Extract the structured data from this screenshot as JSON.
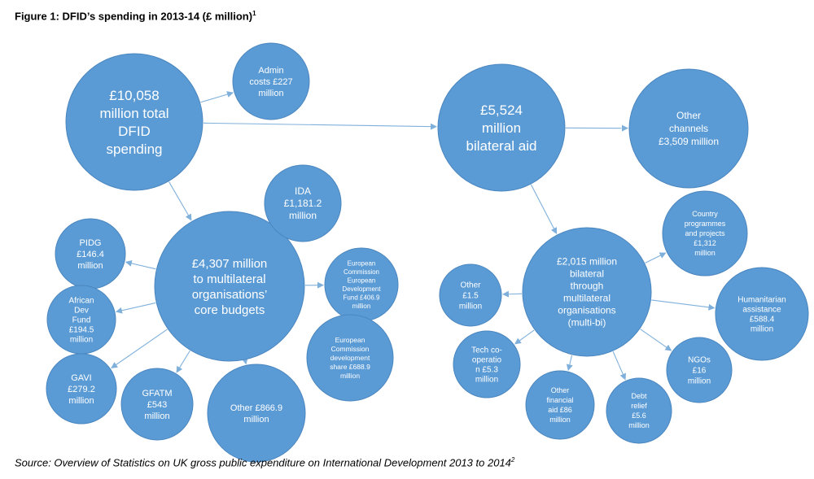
{
  "figure": {
    "title": "Figure 1: DFID’s spending in 2013-14 (£ million)",
    "title_sup": "1",
    "source": "Source: Overview of Statistics on UK gross public expenditure on International Development 2013 to 2014",
    "source_sup": "2",
    "bubble_color": "#5b9bd5",
    "arrow_color": "#7fb0db"
  },
  "nodes": {
    "total": [
      "£10,058",
      "million total",
      "DFID",
      "spending"
    ],
    "admin": [
      "Admin",
      "costs £227",
      "million"
    ],
    "bilateral": [
      "£5,524",
      "million",
      "bilateral aid"
    ],
    "other_channels": [
      "Other",
      "channels",
      "£3,509 million"
    ],
    "multilateral": [
      "£4,307 million",
      "to multilateral",
      "organisations’",
      "core budgets"
    ],
    "ida": [
      "IDA",
      "£1,181.2",
      "million"
    ],
    "pidg": [
      "PIDG",
      "£146.4",
      "million"
    ],
    "afdf": [
      "African",
      "Dev",
      "Fund",
      "£194.5",
      "million"
    ],
    "gavi": [
      "GAVI",
      "£279.2",
      "million"
    ],
    "gfatm": [
      "GFATM",
      "£543",
      "million"
    ],
    "other_multi": [
      "Other £866.9",
      "million"
    ],
    "edf": [
      "European",
      "Commission",
      "European",
      "Development",
      "Fund £406.9",
      "million"
    ],
    "ec_dev": [
      "European",
      "Commission",
      "development",
      "share £688.9",
      "million"
    ],
    "multibi": [
      "£2,015 million",
      "bilateral",
      "through",
      "multilateral",
      "organisations",
      "(multi-bi)"
    ],
    "country": [
      "Country",
      "programmes",
      "and projects",
      "£1,312",
      "million"
    ],
    "other_mb": [
      "Other",
      "£1.5",
      "million"
    ],
    "humanitarian": [
      "Humanitarian",
      "assistance",
      "£588.4",
      "million"
    ],
    "tech": [
      "Tech co-",
      "operatio",
      "n £5.3",
      "million"
    ],
    "ngos": [
      "NGOs",
      "£16",
      "million"
    ],
    "other_fin": [
      "Other",
      "financial",
      "aid £86",
      "million"
    ],
    "debt": [
      "Debt",
      "relief",
      "£5.6",
      "million"
    ]
  }
}
